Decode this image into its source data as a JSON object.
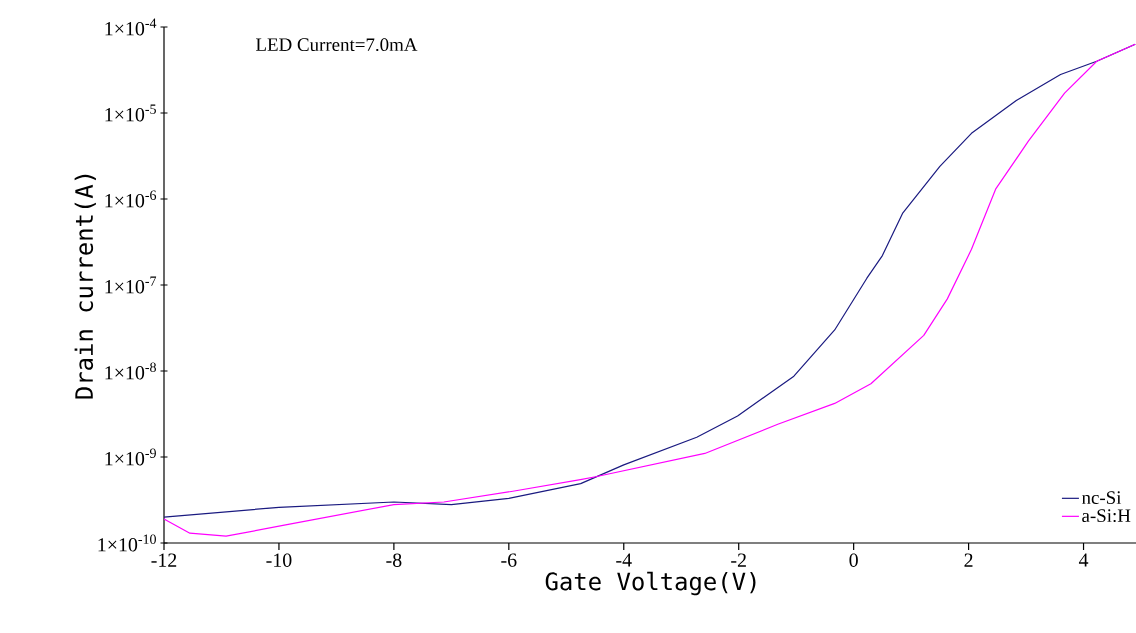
{
  "chart_data": {
    "type": "line",
    "xlabel": "Gate Voltage(V)",
    "ylabel": "Drain current(A)",
    "annotations": [
      "LED Current=7.0mA"
    ],
    "log": "y",
    "grid": false,
    "legend": "bottom right",
    "marker": "none",
    "line_style": "solid",
    "xlim": [
      -12,
      5
    ],
    "xticks": [
      -12,
      -10,
      -8,
      -6,
      -4,
      -2,
      0,
      2,
      4
    ],
    "ylim": [
      1e-10,
      0.0001
    ],
    "yticks": [
      {
        "value": 1e-10,
        "label": "1×10$^{-10}$"
      },
      {
        "value": 1e-09,
        "label": "1×10$^{-9}$"
      },
      {
        "value": 1e-08,
        "label": "1×10$^{-8}$"
      },
      {
        "value": 1e-07,
        "label": "1×10$^{-7}$"
      },
      {
        "value": 1e-06,
        "label": "1×10$^{-6}$"
      },
      {
        "value": 1e-05,
        "label": "1×10$^{-5}$"
      },
      {
        "value": 0.0001,
        "label": "1×10$^{-4}$"
      }
    ],
    "series": [
      {
        "name": "nc-Si",
        "color": "#1a1a80",
        "x": [
          -12,
          -10,
          -8,
          -7,
          -6,
          -4.75,
          -4,
          -2.73,
          -2.02,
          -1.04,
          -0.33,
          0.23,
          0.5,
          0.85,
          1.5,
          2.05,
          2.83,
          3.6,
          4.23,
          4.9
        ],
        "values": [
          2e-10,
          2.6e-10,
          3e-10,
          2.8e-10,
          3.3e-10,
          4.9e-10,
          8.1e-10,
          1.7e-09,
          3e-09,
          8.7e-09,
          3e-08,
          1.2e-07,
          2.2e-07,
          6.8e-07,
          2.4e-06,
          5.8e-06,
          1.4e-05,
          2.8e-05,
          4e-05,
          6.3e-05
        ]
      },
      {
        "name": "a-Si:H",
        "color": "#ff00ff",
        "x": [
          -12,
          -11.55,
          -10.92,
          -9.93,
          -8.0,
          -7.13,
          -5.93,
          -4.73,
          -4.49,
          -2.59,
          -1.32,
          -0.33,
          0.3,
          1.22,
          1.63,
          2.05,
          2.47,
          3.04,
          3.67,
          4.23,
          4.9
        ],
        "values": [
          1.9e-10,
          1.3e-10,
          1.2e-10,
          1.6e-10,
          2.8e-10,
          3e-10,
          4e-10,
          5.5e-10,
          5.9e-10,
          1.1e-09,
          2.4e-09,
          4.2e-09,
          7.1e-09,
          2.6e-08,
          6.9e-08,
          2.6e-07,
          1.3e-06,
          4.7e-06,
          1.7e-05,
          4e-05,
          6.3e-05
        ]
      }
    ]
  }
}
